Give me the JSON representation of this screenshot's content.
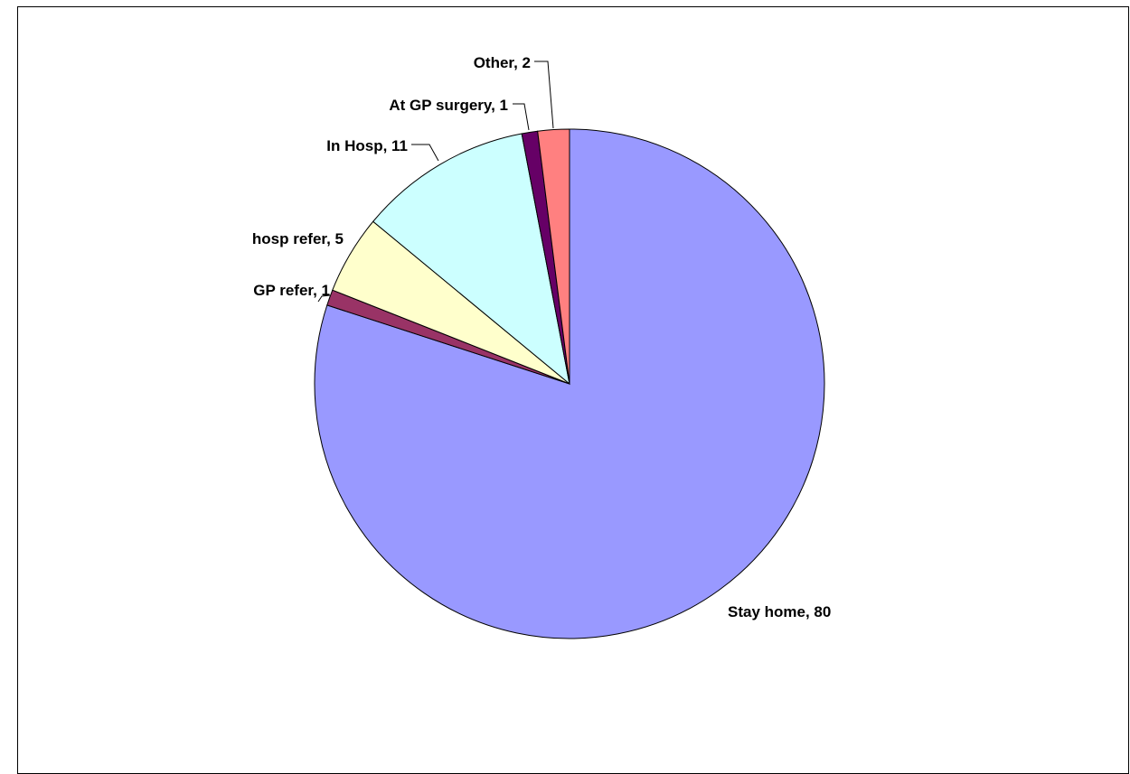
{
  "chart_data": {
    "type": "pie",
    "title": "",
    "start_angle_deg": 0,
    "direction": "clockwise",
    "show_legend": false,
    "slices": [
      {
        "label": "Stay home",
        "value": 80,
        "color": "#9999FF",
        "text": "Stay home, 80"
      },
      {
        "label": "GP refer",
        "value": 1,
        "color": "#993366",
        "text": "GP refer, 1"
      },
      {
        "label": "hosp refer",
        "value": 5,
        "color": "#FFFFCC",
        "text": "hosp refer, 5"
      },
      {
        "label": "In Hosp",
        "value": 11,
        "color": "#CCFFFF",
        "text": "In Hosp, 11"
      },
      {
        "label": "At GP surgery",
        "value": 1,
        "color": "#660066",
        "text": "At GP surgery, 1"
      },
      {
        "label": "Other",
        "value": 2,
        "color": "#FF8080",
        "text": "Other, 2"
      }
    ]
  }
}
